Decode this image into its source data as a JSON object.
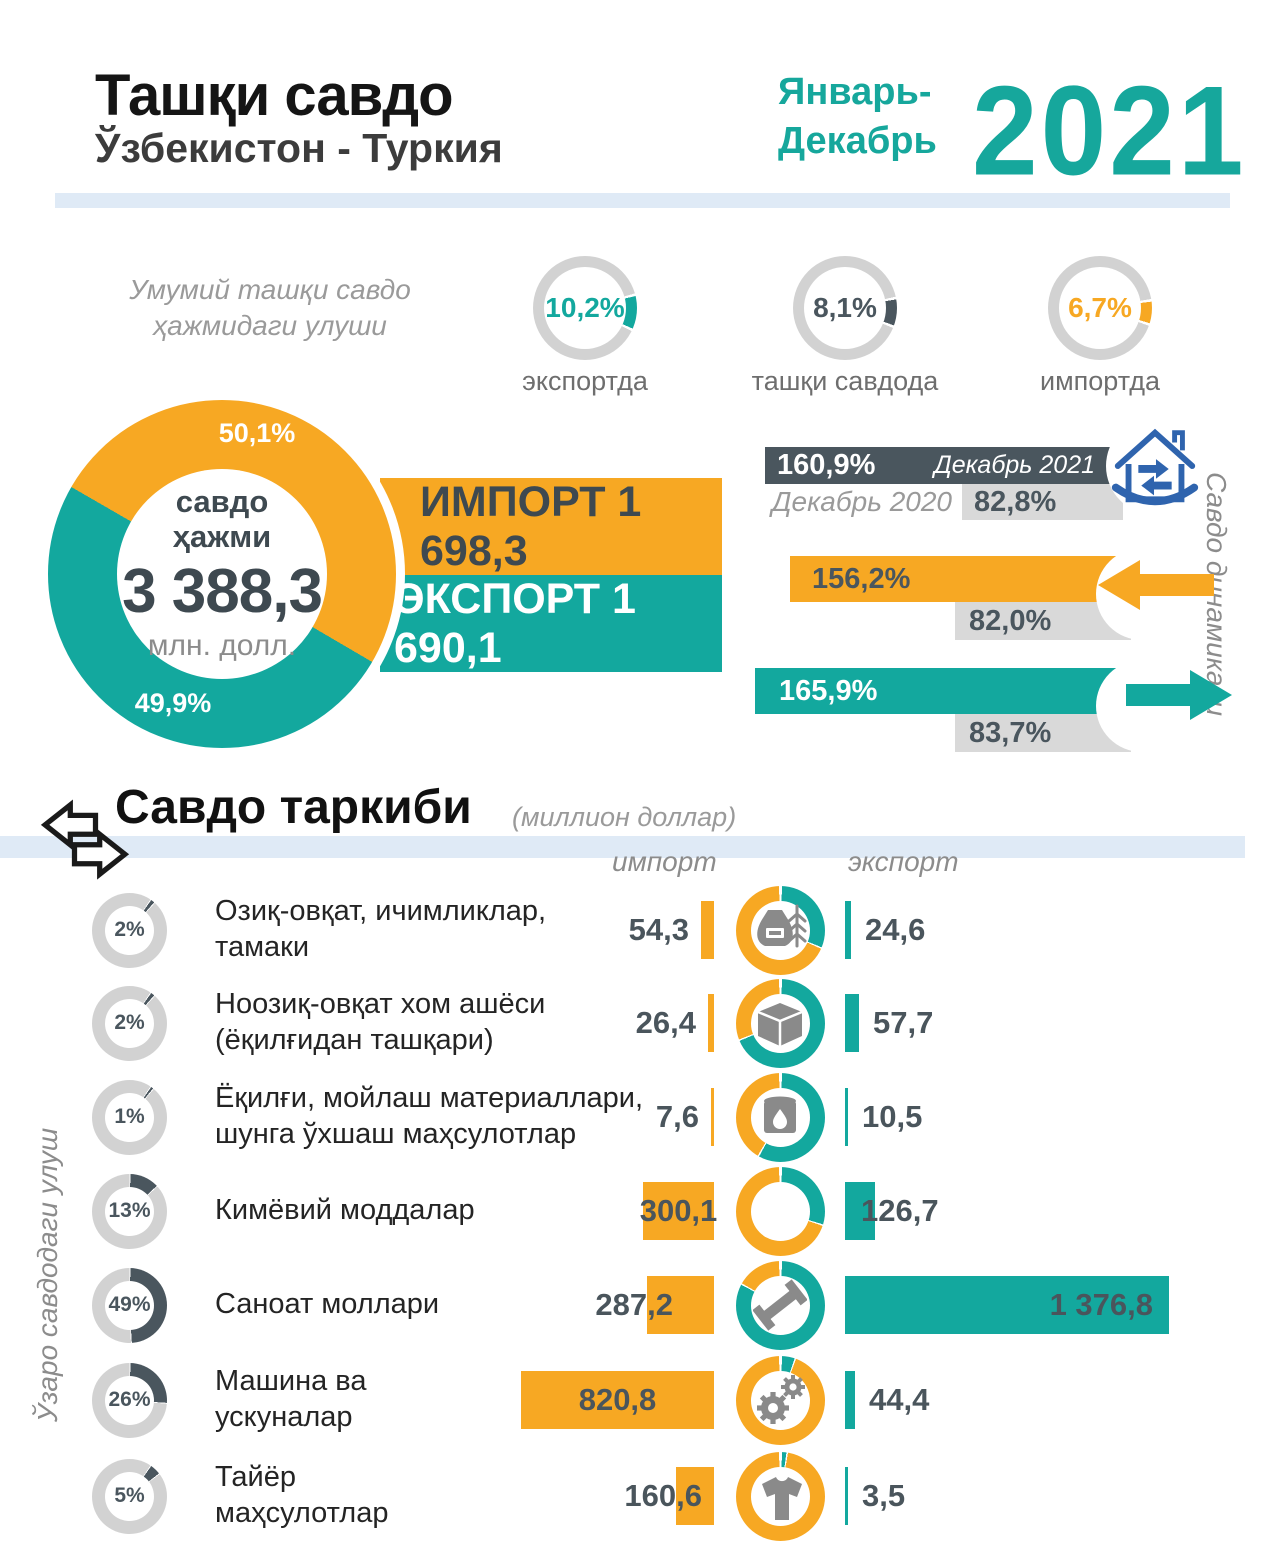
{
  "header": {
    "title": "Ташқи савдо",
    "subtitle": "Ўзбекистон - Туркия",
    "period_line1": "Январь-",
    "period_line2": "Декабрь",
    "year": "2021"
  },
  "share_section": {
    "caption_line1": "Умумий ташқи савдо",
    "caption_line2": "ҳажмидаги улуши",
    "gauges": [
      {
        "value": "10,2%",
        "pct": 10.2,
        "label": "экспортда",
        "color": "#13a89e"
      },
      {
        "value": "8,1%",
        "pct": 8.1,
        "label": "ташқи савдода",
        "color": "#4a565e"
      },
      {
        "value": "6,7%",
        "pct": 6.7,
        "label": "импортда",
        "color": "#f7a823"
      }
    ]
  },
  "volume": {
    "donut_label_line1": "савдо",
    "donut_label_line2": "ҳажми",
    "total": "3 388,3",
    "unit": "млн. долл.",
    "import_share": "50,1%",
    "export_share": "49,9%",
    "import_share_pct": 50.1,
    "export_share_pct": 49.9,
    "import_bar_label": "ИМПОРТ 1 698,3",
    "export_bar_label": "ЭКСПОРТ 1 690,1"
  },
  "dynamics": {
    "side_label": "Савдо динамикаси",
    "label_2021": "Декабрь 2021",
    "label_2020": "Декабрь 2020",
    "rows": [
      {
        "name": "ташқи савдо",
        "value_2021": "160,9%",
        "value_2020": "82,8%",
        "color": "#4a565e"
      },
      {
        "name": "импорт",
        "value_2021": "156,2%",
        "value_2020": "82,0%",
        "color": "#f7a823",
        "arrow": "left"
      },
      {
        "name": "экспорт",
        "value_2021": "165,9%",
        "value_2020": "83,7%",
        "color": "#13a89e",
        "arrow": "right"
      }
    ]
  },
  "composition": {
    "title": "Савдо таркиби",
    "subtitle": "(миллион доллар)",
    "col_import": "импорт",
    "col_export": "экспорт",
    "side_label": "Ўзаро савдодаги улуш",
    "rows": [
      {
        "share": "2%",
        "share_pct": 2,
        "label": "Озиқ-овқат, ичимликлар, тамаки",
        "import": "54,3",
        "import_val": 54.3,
        "export": "24,6",
        "export_val": 24.6,
        "icon": "food-icon"
      },
      {
        "share": "2%",
        "share_pct": 2,
        "label": "Ноозиқ-овқат хом ашёси (ёқилғидан ташқари)",
        "import": "26,4",
        "import_val": 26.4,
        "export": "57,7",
        "export_val": 57.7,
        "icon": "box-icon"
      },
      {
        "share": "1%",
        "share_pct": 1,
        "label": "Ёқилғи, мойлаш материаллари, шунга ўхшаш маҳсулотлар",
        "import": "7,6",
        "import_val": 7.6,
        "export": "10,5",
        "export_val": 10.5,
        "icon": "fuel-barrel-icon"
      },
      {
        "share": "13%",
        "share_pct": 13,
        "label": "Кимёвий моддалар",
        "import": "300,1",
        "import_val": 300.1,
        "export": "126,7",
        "export_val": 126.7,
        "icon": "chemistry-flask-icon"
      },
      {
        "share": "49%",
        "share_pct": 49,
        "label": "Саноат моллари",
        "import": "287,2",
        "import_val": 287.2,
        "export": "1 376,8",
        "export_val": 1376.8,
        "icon": "steel-beam-icon"
      },
      {
        "share": "26%",
        "share_pct": 26,
        "label": "Машина ва ускуналар",
        "import": "820,8",
        "import_val": 820.8,
        "export": "44,4",
        "export_val": 44.4,
        "icon": "gears-icon"
      },
      {
        "share": "5%",
        "share_pct": 5,
        "label": "Тайёр маҳсулотлар",
        "import": "160,6",
        "import_val": 160.6,
        "export": "3,5",
        "export_val": 3.5,
        "icon": "tshirt-icon"
      }
    ]
  },
  "colors": {
    "orange": "#f7a823",
    "teal": "#13a89e",
    "slate": "#4a565e",
    "gray_bar": "#d9d9d9",
    "ring_gray": "#d2d2d2",
    "band_blue": "#dfeaf6",
    "icon_blue": "#2f64ae",
    "icon_gray": "#8a8a8a"
  },
  "chart_data": [
    {
      "type": "pie",
      "title": "Умумий ташқи савдо ҳажмидаги улуши",
      "series": [
        {
          "name": "экспортда",
          "value": 10.2
        },
        {
          "name": "ташқи савдода",
          "value": 8.1
        },
        {
          "name": "импортда",
          "value": 6.7
        }
      ],
      "unit": "%"
    },
    {
      "type": "pie",
      "title": "савдо ҳажми 3 388,3 млн. долл.",
      "categories": [
        "ИМПОРТ",
        "ЭКСПОРТ"
      ],
      "values": [
        50.1,
        49.9
      ],
      "annotations": [
        "ИМПОРТ 1 698,3",
        "ЭКСПОРТ 1 690,1"
      ],
      "unit": "%"
    },
    {
      "type": "bar",
      "title": "Савдо динамикаси",
      "categories": [
        "ташқи савдо",
        "импорт",
        "экспорт"
      ],
      "series": [
        {
          "name": "Декабрь 2021",
          "values": [
            160.9,
            156.2,
            165.9
          ]
        },
        {
          "name": "Декабрь 2020",
          "values": [
            82.8,
            82.0,
            83.7
          ]
        }
      ],
      "unit": "%"
    },
    {
      "type": "bar",
      "title": "Савдо таркиби (миллион доллар)",
      "categories": [
        "Озиқ-овқат, ичимликлар, тамаки",
        "Ноозиқ-овқат хом ашёси (ёқилғидан ташқари)",
        "Ёқилғи, мойлаш материаллари, шунга ўхшаш маҳсулотлар",
        "Кимёвий моддалар",
        "Саноат моллари",
        "Машина ва ускуналар",
        "Тайёр маҳсулотлар"
      ],
      "series": [
        {
          "name": "импорт",
          "values": [
            54.3,
            26.4,
            7.6,
            300.1,
            287.2,
            820.8,
            160.6
          ]
        },
        {
          "name": "экспорт",
          "values": [
            24.6,
            57.7,
            10.5,
            126.7,
            1376.8,
            44.4,
            3.5
          ]
        }
      ],
      "share_in_trade_pct": [
        2,
        2,
        1,
        13,
        49,
        26,
        5
      ]
    }
  ]
}
